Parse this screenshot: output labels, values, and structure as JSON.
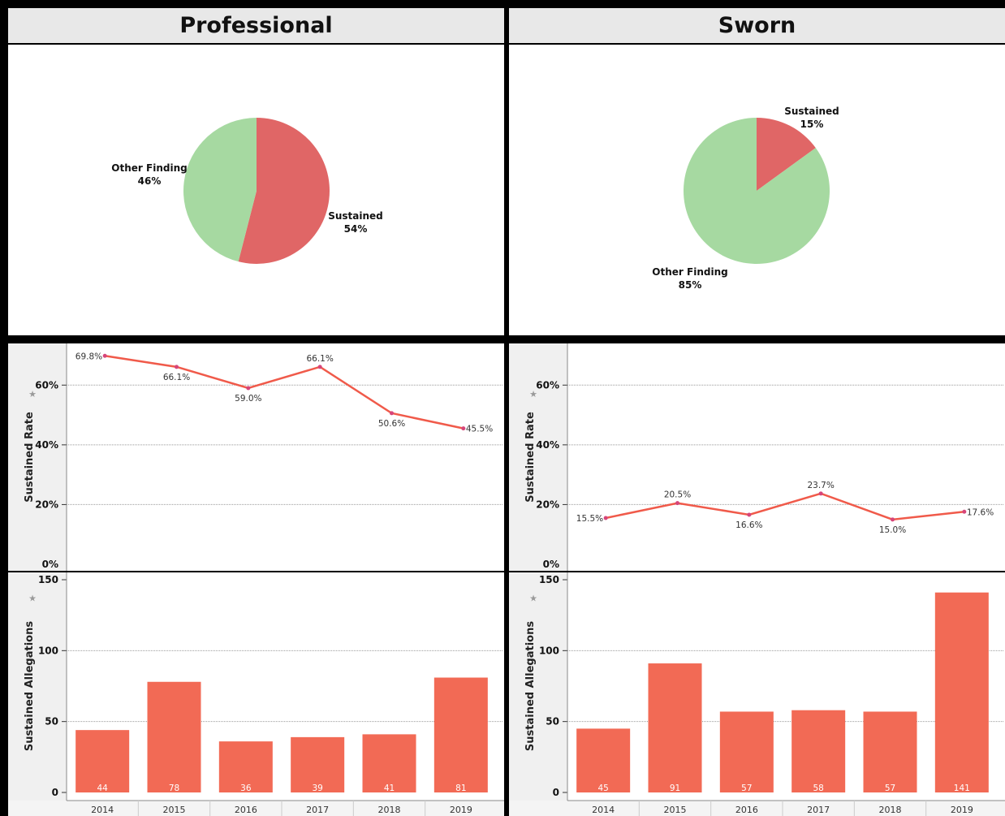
{
  "colors": {
    "sustained": "#e06666",
    "other": "#a6d9a1",
    "line": "#f05a4a",
    "bar": "#f26a55",
    "point": "#d6457a"
  },
  "years": [
    "2014",
    "2015",
    "2016",
    "2017",
    "2018",
    "2019"
  ],
  "axes": {
    "rate_label": "Sustained Rate",
    "alleg_label": "Sustained Allegations",
    "pin_icon": "pin-icon"
  },
  "panels": [
    {
      "title": "Professional",
      "pie": {
        "slices": [
          {
            "label": "Sustained",
            "pct_text": "54%",
            "value": 54
          },
          {
            "label": "Other Finding",
            "pct_text": "46%",
            "value": 46
          }
        ]
      },
      "rate": {
        "labels": [
          "69.8%",
          "66.1%",
          "59.0%",
          "66.1%",
          "50.6%",
          "45.5%"
        ]
      },
      "alleg": {
        "labels": [
          "44",
          "78",
          "36",
          "39",
          "41",
          "81"
        ]
      }
    },
    {
      "title": "Sworn",
      "pie": {
        "slices": [
          {
            "label": "Sustained",
            "pct_text": "15%",
            "value": 15
          },
          {
            "label": "Other Finding",
            "pct_text": "85%",
            "value": 85
          }
        ]
      },
      "rate": {
        "labels": [
          "15.5%",
          "20.5%",
          "16.6%",
          "23.7%",
          "15.0%",
          "17.6%"
        ]
      },
      "alleg": {
        "labels": [
          "45",
          "91",
          "57",
          "58",
          "57",
          "141"
        ]
      }
    }
  ],
  "chart_data": [
    {
      "type": "pie",
      "title": "Professional",
      "categories": [
        "Sustained",
        "Other Finding"
      ],
      "values": [
        54,
        46
      ]
    },
    {
      "type": "pie",
      "title": "Sworn",
      "categories": [
        "Sustained",
        "Other Finding"
      ],
      "values": [
        15,
        85
      ]
    },
    {
      "type": "line",
      "title": "Professional",
      "x": [
        "2014",
        "2015",
        "2016",
        "2017",
        "2018",
        "2019"
      ],
      "values": [
        69.8,
        66.1,
        59.0,
        66.1,
        50.6,
        45.5
      ],
      "ylabel": "Sustained Rate",
      "ylim": [
        0,
        70
      ],
      "yticks": [
        "0%",
        "20%",
        "40%",
        "60%"
      ],
      "grid": true
    },
    {
      "type": "line",
      "title": "Sworn",
      "x": [
        "2014",
        "2015",
        "2016",
        "2017",
        "2018",
        "2019"
      ],
      "values": [
        15.5,
        20.5,
        16.6,
        23.7,
        15.0,
        17.6
      ],
      "ylabel": "Sustained Rate",
      "ylim": [
        0,
        70
      ],
      "yticks": [
        "0%",
        "20%",
        "40%",
        "60%"
      ],
      "grid": true
    },
    {
      "type": "bar",
      "title": "Professional",
      "categories": [
        "2014",
        "2015",
        "2016",
        "2017",
        "2018",
        "2019"
      ],
      "values": [
        44,
        78,
        36,
        39,
        41,
        81
      ],
      "ylabel": "Sustained Allegations",
      "ylim": [
        0,
        150
      ],
      "yticks": [
        "0",
        "50",
        "100",
        "150"
      ],
      "grid": true
    },
    {
      "type": "bar",
      "title": "Sworn",
      "categories": [
        "2014",
        "2015",
        "2016",
        "2017",
        "2018",
        "2019"
      ],
      "values": [
        45,
        91,
        57,
        58,
        57,
        141
      ],
      "ylabel": "Sustained Allegations",
      "ylim": [
        0,
        150
      ],
      "yticks": [
        "0",
        "50",
        "100",
        "150"
      ],
      "grid": true
    }
  ]
}
